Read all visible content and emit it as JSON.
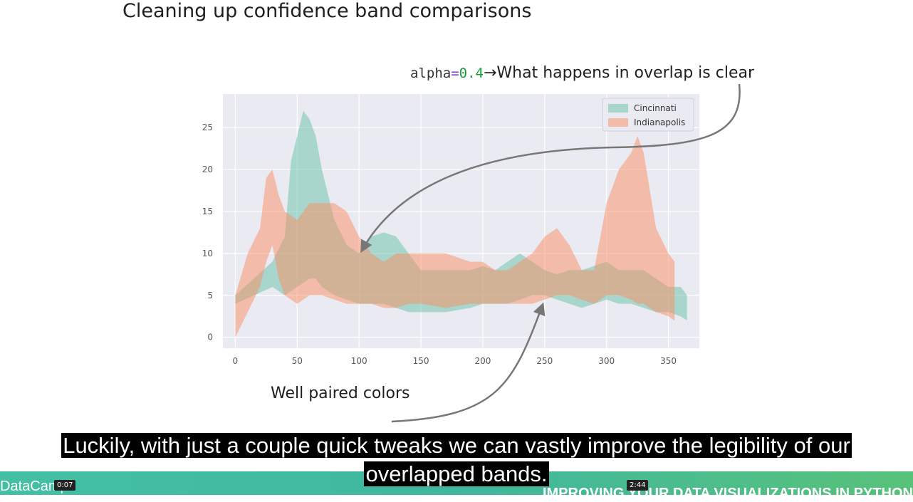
{
  "slide": {
    "title": "Cleaning up confidence band comparisons",
    "annotation_top": {
      "code_name": "alpha",
      "code_eq": "=",
      "code_value": "0.4",
      "text": "→What happens in overlap is clear"
    },
    "annotation_bottom": "Well paired colors"
  },
  "caption": {
    "line1": "Luckily, with just a couple quick tweaks we can vastly improve the legibility of our",
    "line2": "overlapped bands."
  },
  "player": {
    "brand": "DataCamp",
    "course_title": "IMPROVING YOUR DATA VISUALIZATIONS IN PYTHON",
    "current_time": "0:07",
    "hover_time": "2:44"
  },
  "colors": {
    "cincinnati": "#66c2a5",
    "indianapolis": "#fc8d62",
    "plot_bg": "#eaeaf2"
  },
  "chart_data": {
    "type": "area",
    "xlim": [
      0,
      365
    ],
    "ylim": [
      0,
      28
    ],
    "xticks": [
      0,
      50,
      100,
      150,
      200,
      250,
      300,
      350
    ],
    "yticks": [
      0,
      5,
      10,
      15,
      20,
      25
    ],
    "legend_position": "top-right",
    "grid": true,
    "series": [
      {
        "name": "Cincinnati",
        "color": "#66c2a5",
        "x": [
          0,
          30,
          40,
          45,
          50,
          55,
          60,
          65,
          70,
          80,
          90,
          100,
          110,
          120,
          130,
          140,
          150,
          170,
          190,
          200,
          210,
          220,
          230,
          240,
          250,
          260,
          270,
          280,
          290,
          300,
          310,
          320,
          330,
          340,
          350,
          360,
          365
        ],
        "upper": [
          5,
          9,
          12,
          21,
          24,
          27,
          26,
          24,
          20,
          14,
          11,
          10,
          12,
          12.5,
          12,
          10,
          8,
          8,
          8,
          8.5,
          8,
          9,
          10,
          9,
          8,
          7.5,
          8,
          8,
          8.5,
          9,
          8,
          8,
          8,
          7,
          6,
          6,
          5
        ],
        "lower": [
          4,
          6,
          5,
          5.5,
          6,
          6.5,
          7,
          7,
          6,
          5,
          4.5,
          4,
          4,
          4,
          3.5,
          3,
          3,
          3,
          3.5,
          4,
          4,
          4,
          4.5,
          5,
          5,
          4.5,
          4,
          3.5,
          4,
          4.5,
          4,
          4,
          3.5,
          3,
          3,
          2.5,
          2
        ]
      },
      {
        "name": "Indianapolis",
        "color": "#fc8d62",
        "x": [
          0,
          10,
          20,
          25,
          30,
          35,
          40,
          50,
          60,
          70,
          80,
          90,
          100,
          110,
          120,
          130,
          140,
          150,
          170,
          190,
          200,
          210,
          220,
          230,
          240,
          250,
          260,
          270,
          280,
          290,
          300,
          310,
          320,
          325,
          330,
          340,
          350,
          355
        ],
        "upper": [
          5,
          10,
          13,
          19,
          20,
          17,
          15,
          14,
          16,
          16,
          16,
          15,
          12,
          10,
          9,
          10,
          10,
          10,
          10,
          9,
          9,
          8,
          8,
          9,
          10,
          12,
          13,
          11,
          8,
          8,
          16,
          20,
          22,
          24,
          22,
          13,
          10,
          9
        ],
        "lower": [
          0,
          3,
          6,
          9,
          11,
          7,
          5,
          4,
          5,
          5,
          4.5,
          4,
          4,
          4,
          3.5,
          3.5,
          4,
          4,
          3.5,
          4,
          4,
          4,
          4,
          4,
          4,
          4.5,
          5,
          5,
          4.5,
          4,
          5,
          5,
          4.5,
          4,
          4,
          3,
          2.5,
          2
        ]
      }
    ]
  }
}
